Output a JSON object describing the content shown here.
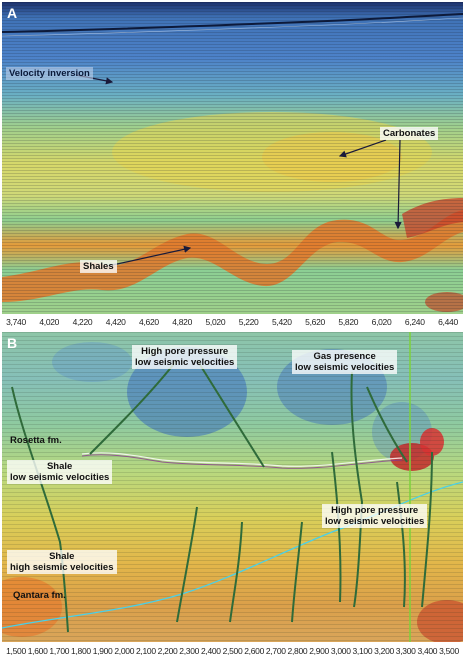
{
  "panel_a": {
    "letter": "A",
    "labels": {
      "velocity_inversion": "Velocity inversion",
      "carbonates": "Carbonates",
      "shales": "Shales"
    },
    "axis_ticks": [
      "3,740",
      "4,020",
      "4,220",
      "4,420",
      "4,620",
      "4,820",
      "5,020",
      "5,220",
      "5,420",
      "5,620",
      "5,820",
      "6,020",
      "6,240",
      "6,440"
    ]
  },
  "panel_b": {
    "letter": "B",
    "labels": {
      "high_pore_pressure_top_1": "High pore pressure",
      "high_pore_pressure_top_2": "low seismic velocities",
      "gas_presence_1": "Gas presence",
      "gas_presence_2": "low seismic velocities",
      "rosetta": "Rosetta fm.",
      "shale_low_1": "Shale",
      "shale_low_2": "low seismic velocities",
      "high_pore_pressure_right_1": "High pore pressure",
      "high_pore_pressure_right_2": "low seismic velocities",
      "shale_high_1": "Shale",
      "shale_high_2": "high seismic velocities",
      "qantara": "Qantara fm."
    },
    "axis_ticks": [
      "1,500",
      "1,600",
      "1,700",
      "1,800",
      "1,900",
      "2,000",
      "2,100",
      "2,200",
      "2,300",
      "2,400",
      "2,500",
      "2,600",
      "2,700",
      "2,800",
      "2,900",
      "3,000",
      "3,100",
      "3,200",
      "3,300",
      "3,400",
      "3,500"
    ]
  },
  "colors": {
    "fault_line": "#2f6b3a",
    "arrow": "#1a1a3a",
    "horizon_cyan": "#4ad0e8",
    "well_line": "#7cd23a"
  }
}
